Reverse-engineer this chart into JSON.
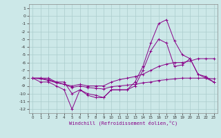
{
  "xlabel": "Windchill (Refroidissement éolien,°C)",
  "x_values": [
    0,
    1,
    2,
    3,
    4,
    5,
    6,
    7,
    8,
    9,
    10,
    11,
    12,
    13,
    14,
    15,
    16,
    17,
    18,
    19,
    20,
    21,
    22,
    23
  ],
  "line1": [
    -8,
    -8.5,
    -8.5,
    -9,
    -9.5,
    -12,
    -9.5,
    -10,
    -10.2,
    -10.5,
    -9.5,
    -9.5,
    -9.5,
    -9,
    -7,
    -4.5,
    -3,
    -3.5,
    -6.5,
    -6.3,
    -5.5,
    -7.5,
    -8,
    -8.5
  ],
  "line2": [
    -8,
    -8,
    -8,
    -8.5,
    -8.5,
    -10,
    -9.5,
    -10.2,
    -10.5,
    -10.5,
    -9.5,
    -9.5,
    -9.5,
    -8.5,
    -6.5,
    -3.5,
    -1,
    -0.5,
    -3.2,
    -5,
    -5.5,
    -7.5,
    -7.8,
    -8.5
  ],
  "line3": [
    -8,
    -8,
    -8.2,
    -8.5,
    -8.8,
    -9,
    -8.8,
    -9,
    -9,
    -9,
    -8.5,
    -8.2,
    -8,
    -7.8,
    -7.5,
    -7,
    -6.5,
    -6.2,
    -6,
    -6,
    -5.8,
    -5.5,
    -5.5,
    -5.5
  ],
  "line4": [
    -8,
    -8.1,
    -8.3,
    -8.6,
    -8.8,
    -9.2,
    -9,
    -9.2,
    -9.3,
    -9.4,
    -9.1,
    -9,
    -8.9,
    -8.8,
    -8.6,
    -8.5,
    -8.3,
    -8.2,
    -8.1,
    -8,
    -8,
    -8,
    -8,
    -8.1
  ],
  "line_color": "#880088",
  "bg_color": "#cce8e8",
  "grid_color": "#aacccc",
  "ylim": [
    -12.5,
    1.5
  ],
  "yticks": [
    1,
    0,
    -1,
    -2,
    -3,
    -4,
    -5,
    -6,
    -7,
    -8,
    -9,
    -10,
    -11,
    -12
  ],
  "xticks": [
    0,
    1,
    2,
    3,
    4,
    5,
    6,
    7,
    8,
    9,
    10,
    11,
    12,
    13,
    14,
    15,
    16,
    17,
    18,
    19,
    20,
    21,
    22,
    23
  ],
  "marker": "+"
}
